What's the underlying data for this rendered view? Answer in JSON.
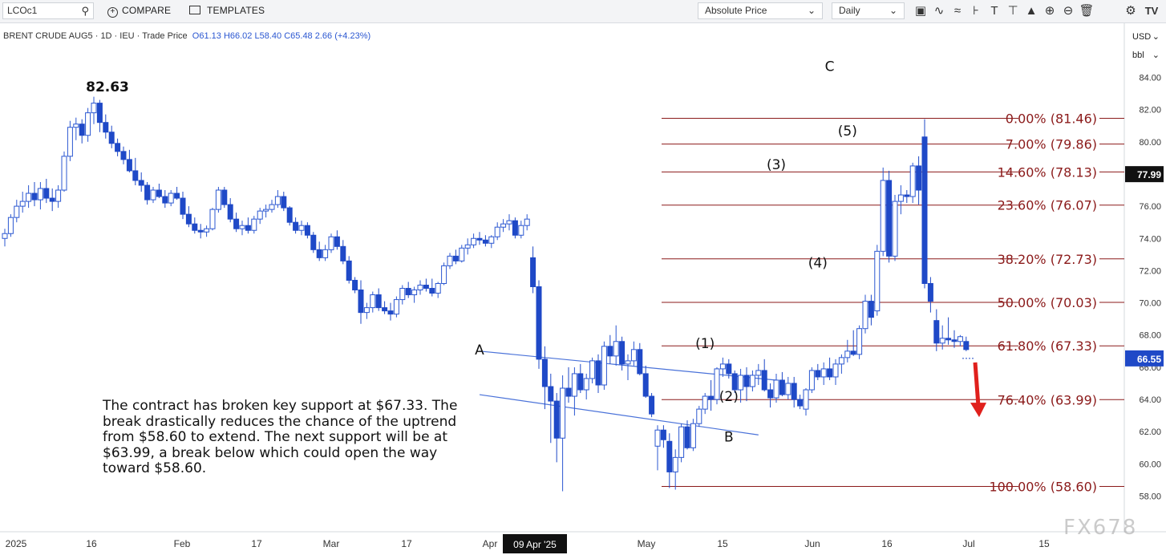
{
  "toolbar": {
    "symbol": "LCOc1",
    "compare_label": "COMPARE",
    "templates_label": "TEMPLATES",
    "price_mode": "Absolute Price",
    "interval": "Daily",
    "icons": [
      "bar-style-icon",
      "indicators-icon",
      "drawing-icon",
      "crosshair-icon",
      "text-icon",
      "annotate-icon",
      "shapes-icon",
      "zoom-in-icon",
      "zoom-out-icon",
      "delete-icon",
      "settings-icon",
      "logo-icon"
    ]
  },
  "legend": {
    "instrument": "BRENT CRUDE AUG5",
    "interval": "1D",
    "exchange": "IEU",
    "price_type": "Trade Price",
    "open": "O61.13",
    "high": "H66.02",
    "low": "L58.40",
    "close": "C65.48",
    "change": "2.66 (+4.23%)"
  },
  "axis_units": {
    "currency": "USD",
    "unit": "bbl"
  },
  "annotation_text": "The contract has broken key support at $67.33. The break drastically reduces the chance of the uptrend from $58.60 to extend. The next support will be at $63.99, a break below which could open the way toward $58.60.",
  "watermark": "FX678",
  "colors": {
    "up_outline": "#2b57d1",
    "down_fill": "#1f49c7",
    "fib": "#8b1a1a",
    "arrow": "#e0201c"
  },
  "chart_data": {
    "type": "candlestick",
    "ylim": [
      57,
      86.5
    ],
    "y_ticks": [
      "84.00",
      "82.00",
      "80.00",
      "78.00",
      "76.00",
      "74.00",
      "72.00",
      "70.00",
      "68.00",
      "66.00",
      "64.00",
      "62.00",
      "60.00",
      "58.00"
    ],
    "x_ticks": [
      "2025",
      "16",
      "Feb",
      "17",
      "Mar",
      "17",
      "Apr",
      "May",
      "15",
      "Jun",
      "16",
      "Jul",
      "15"
    ],
    "crosshair_label": "09 Apr '25",
    "price_tags": [
      {
        "value": 77.99,
        "label": "77.99",
        "color": "#111111"
      },
      {
        "value": 66.55,
        "label": "66.55",
        "color": "#1f49c7"
      }
    ],
    "peak_label": "82.63",
    "fibonacci": [
      {
        "level": "0.00%",
        "price": 81.46,
        "label": "0.00% (81.46)"
      },
      {
        "level": "7.00%",
        "price": 79.86,
        "label": "7.00% (79.86)"
      },
      {
        "level": "14.60%",
        "price": 78.13,
        "label": "14.60% (78.13)"
      },
      {
        "level": "23.60%",
        "price": 76.07,
        "label": "23.60% (76.07)"
      },
      {
        "level": "38.20%",
        "price": 72.73,
        "label": "38.20% (72.73)"
      },
      {
        "level": "50.00%",
        "price": 70.03,
        "label": "50.00% (70.03)"
      },
      {
        "level": "61.80%",
        "price": 67.33,
        "label": "61.80% (67.33)"
      },
      {
        "level": "76.40%",
        "price": 63.99,
        "label": "76.40% (63.99)"
      },
      {
        "level": "100.00%",
        "price": 58.6,
        "label": "100.00% (58.60)"
      }
    ],
    "wave_labels": [
      {
        "text": "A",
        "x": 80,
        "y": 66.8
      },
      {
        "text": "B",
        "x": 122,
        "y": 61.4
      },
      {
        "text": "(1)",
        "x": 118,
        "y": 67.2
      },
      {
        "text": "(2)",
        "x": 122,
        "y": 63.9
      },
      {
        "text": "(3)",
        "x": 130,
        "y": 78.3
      },
      {
        "text": "(4)",
        "x": 137,
        "y": 72.2
      },
      {
        "text": "(5)",
        "x": 142,
        "y": 80.4
      },
      {
        "text": "C",
        "x": 139,
        "y": 84.4
      }
    ],
    "channel_lines": [
      {
        "x1": 80,
        "y1": 67.0,
        "x2": 130,
        "y2": 65.2
      },
      {
        "x1": 80,
        "y1": 64.3,
        "x2": 127,
        "y2": 61.8
      }
    ],
    "candles": [
      [
        74.0,
        74.6,
        73.5,
        74.3
      ],
      [
        74.3,
        75.5,
        74.1,
        75.3
      ],
      [
        75.3,
        76.4,
        75.0,
        76.0
      ],
      [
        76.0,
        76.9,
        75.6,
        76.3
      ],
      [
        76.3,
        77.3,
        75.9,
        76.8
      ],
      [
        76.8,
        77.5,
        76.0,
        76.4
      ],
      [
        76.4,
        77.5,
        75.8,
        77.1
      ],
      [
        77.1,
        77.7,
        76.2,
        76.5
      ],
      [
        76.5,
        77.1,
        75.7,
        76.3
      ],
      [
        76.3,
        77.3,
        75.9,
        77.0
      ],
      [
        77.0,
        79.4,
        76.9,
        79.1
      ],
      [
        79.1,
        81.3,
        78.8,
        80.9
      ],
      [
        80.9,
        81.5,
        80.1,
        81.1
      ],
      [
        81.1,
        81.4,
        79.9,
        80.4
      ],
      [
        80.4,
        82.1,
        80.0,
        81.8
      ],
      [
        81.8,
        82.8,
        81.1,
        82.4
      ],
      [
        82.4,
        82.6,
        80.6,
        81.2
      ],
      [
        81.2,
        81.7,
        80.2,
        80.6
      ],
      [
        80.6,
        81.0,
        79.6,
        79.9
      ],
      [
        79.9,
        80.2,
        79.1,
        79.4
      ],
      [
        79.4,
        79.7,
        78.6,
        78.9
      ],
      [
        78.9,
        79.5,
        78.1,
        78.2
      ],
      [
        78.2,
        79.0,
        77.3,
        77.6
      ],
      [
        77.6,
        78.1,
        76.9,
        77.3
      ],
      [
        77.3,
        77.5,
        76.1,
        76.4
      ],
      [
        76.4,
        77.2,
        76.2,
        77.0
      ],
      [
        77.0,
        77.4,
        76.5,
        76.6
      ],
      [
        76.6,
        77.0,
        75.9,
        76.2
      ],
      [
        76.2,
        77.0,
        76.0,
        76.8
      ],
      [
        76.8,
        77.2,
        76.4,
        76.5
      ],
      [
        76.5,
        76.9,
        75.2,
        75.5
      ],
      [
        75.5,
        76.0,
        74.7,
        74.9
      ],
      [
        74.9,
        75.3,
        74.3,
        74.5
      ],
      [
        74.5,
        74.9,
        74.0,
        74.4
      ],
      [
        74.4,
        74.8,
        74.1,
        74.6
      ],
      [
        74.6,
        75.9,
        74.5,
        75.8
      ],
      [
        75.8,
        77.2,
        75.6,
        77.0
      ],
      [
        77.0,
        77.2,
        75.9,
        76.1
      ],
      [
        76.1,
        76.5,
        75.0,
        75.2
      ],
      [
        75.2,
        75.6,
        74.4,
        74.6
      ],
      [
        74.6,
        75.1,
        74.2,
        74.8
      ],
      [
        74.8,
        75.3,
        74.3,
        74.5
      ],
      [
        74.5,
        75.4,
        74.3,
        75.2
      ],
      [
        75.2,
        75.9,
        74.9,
        75.7
      ],
      [
        75.7,
        76.1,
        75.3,
        75.8
      ],
      [
        75.8,
        76.4,
        75.6,
        76.1
      ],
      [
        76.1,
        77.0,
        75.9,
        76.6
      ],
      [
        76.6,
        76.9,
        75.7,
        75.9
      ],
      [
        75.9,
        76.0,
        74.8,
        75.0
      ],
      [
        75.0,
        75.3,
        74.3,
        74.5
      ],
      [
        74.5,
        75.1,
        74.2,
        74.8
      ],
      [
        74.8,
        75.0,
        74.0,
        74.2
      ],
      [
        74.2,
        74.4,
        73.1,
        73.3
      ],
      [
        73.3,
        73.8,
        72.6,
        72.8
      ],
      [
        72.8,
        73.6,
        72.6,
        73.3
      ],
      [
        73.3,
        74.3,
        73.1,
        74.1
      ],
      [
        74.1,
        74.5,
        73.3,
        73.5
      ],
      [
        73.5,
        73.9,
        72.4,
        72.6
      ],
      [
        72.6,
        72.9,
        71.2,
        71.4
      ],
      [
        71.4,
        71.6,
        70.6,
        70.8
      ],
      [
        70.8,
        71.4,
        68.7,
        69.4
      ],
      [
        69.4,
        70.0,
        69.0,
        69.7
      ],
      [
        69.7,
        70.7,
        69.4,
        70.5
      ],
      [
        70.5,
        70.9,
        69.5,
        69.7
      ],
      [
        69.7,
        70.1,
        69.3,
        69.5
      ],
      [
        69.5,
        70.0,
        68.9,
        69.3
      ],
      [
        69.3,
        70.4,
        69.1,
        70.2
      ],
      [
        70.2,
        71.1,
        69.9,
        70.9
      ],
      [
        70.9,
        71.3,
        70.3,
        70.5
      ],
      [
        70.5,
        71.0,
        70.0,
        70.8
      ],
      [
        70.8,
        71.4,
        70.5,
        71.1
      ],
      [
        71.1,
        71.5,
        70.7,
        70.9
      ],
      [
        70.9,
        71.5,
        70.4,
        70.6
      ],
      [
        70.6,
        71.3,
        70.3,
        71.2
      ],
      [
        71.2,
        72.5,
        71.1,
        72.3
      ],
      [
        72.3,
        73.1,
        72.1,
        72.9
      ],
      [
        72.9,
        73.3,
        72.4,
        72.6
      ],
      [
        72.6,
        73.6,
        72.5,
        73.4
      ],
      [
        73.4,
        74.0,
        73.0,
        73.6
      ],
      [
        73.6,
        74.3,
        73.4,
        74.0
      ],
      [
        74.0,
        74.4,
        73.6,
        73.9
      ],
      [
        73.9,
        74.2,
        73.5,
        73.7
      ],
      [
        73.7,
        74.2,
        73.4,
        74.1
      ],
      [
        74.1,
        75.0,
        73.9,
        74.7
      ],
      [
        74.7,
        75.2,
        74.4,
        74.9
      ],
      [
        74.9,
        75.5,
        74.5,
        75.1
      ],
      [
        75.1,
        75.3,
        74.0,
        74.2
      ],
      [
        74.2,
        75.1,
        74.0,
        74.8
      ],
      [
        74.8,
        75.5,
        74.5,
        75.2
      ],
      [
        72.8,
        73.5,
        70.6,
        71.0
      ],
      [
        71.0,
        71.4,
        65.9,
        66.5
      ],
      [
        66.5,
        67.3,
        63.4,
        64.8
      ],
      [
        64.8,
        65.6,
        61.3,
        63.9
      ],
      [
        63.9,
        64.4,
        60.1,
        61.6
      ],
      [
        61.6,
        65.5,
        58.3,
        64.7
      ],
      [
        64.7,
        66.0,
        63.8,
        64.2
      ],
      [
        64.2,
        66.0,
        63.0,
        65.6
      ],
      [
        65.6,
        66.2,
        64.4,
        64.6
      ],
      [
        64.6,
        65.6,
        64.0,
        65.3
      ],
      [
        65.3,
        66.6,
        65.0,
        66.4
      ],
      [
        66.4,
        66.8,
        64.4,
        64.9
      ],
      [
        64.9,
        67.6,
        64.6,
        67.3
      ],
      [
        67.3,
        68.0,
        66.2,
        66.7
      ],
      [
        66.7,
        68.6,
        66.1,
        67.6
      ],
      [
        67.6,
        67.9,
        65.8,
        66.2
      ],
      [
        66.2,
        66.8,
        65.2,
        66.4
      ],
      [
        66.4,
        67.6,
        66.1,
        67.1
      ],
      [
        67.1,
        67.5,
        65.5,
        65.6
      ],
      [
        65.6,
        66.1,
        64.1,
        64.2
      ],
      [
        64.2,
        64.4,
        62.9,
        63.1
      ],
      [
        61.1,
        62.4,
        59.6,
        62.1
      ],
      [
        62.1,
        62.4,
        61.0,
        61.5
      ],
      [
        61.4,
        61.9,
        58.5,
        59.5
      ],
      [
        59.5,
        60.9,
        58.4,
        60.4
      ],
      [
        60.4,
        62.5,
        60.1,
        62.3
      ],
      [
        62.3,
        62.7,
        60.9,
        61.0
      ],
      [
        61.0,
        62.8,
        60.8,
        62.5
      ],
      [
        62.5,
        63.6,
        62.3,
        63.4
      ],
      [
        63.4,
        64.4,
        63.1,
        64.2
      ],
      [
        64.2,
        65.2,
        63.3,
        64.0
      ],
      [
        64.0,
        66.0,
        63.7,
        65.9
      ],
      [
        65.9,
        66.6,
        65.4,
        66.2
      ],
      [
        66.2,
        66.5,
        65.3,
        65.6
      ],
      [
        65.6,
        65.8,
        64.4,
        64.6
      ],
      [
        64.6,
        65.9,
        63.8,
        65.5
      ],
      [
        65.5,
        66.0,
        63.9,
        64.8
      ],
      [
        64.8,
        65.8,
        64.5,
        65.5
      ],
      [
        65.5,
        66.2,
        64.9,
        65.8
      ],
      [
        65.8,
        66.5,
        64.5,
        64.6
      ],
      [
        64.6,
        65.0,
        63.5,
        64.1
      ],
      [
        64.1,
        65.6,
        63.8,
        65.2
      ],
      [
        65.2,
        65.7,
        64.2,
        64.3
      ],
      [
        64.3,
        65.4,
        64.0,
        65.0
      ],
      [
        65.0,
        65.4,
        63.5,
        64.0
      ],
      [
        64.0,
        64.3,
        63.4,
        63.6
      ],
      [
        63.4,
        64.7,
        63.0,
        64.6
      ],
      [
        64.6,
        66.0,
        64.4,
        65.8
      ],
      [
        65.8,
        66.2,
        65.2,
        65.4
      ],
      [
        65.4,
        66.3,
        64.9,
        65.9
      ],
      [
        65.9,
        66.6,
        65.2,
        65.4
      ],
      [
        65.4,
        66.5,
        64.9,
        66.2
      ],
      [
        66.2,
        66.8,
        65.6,
        66.6
      ],
      [
        66.6,
        67.7,
        66.3,
        67.0
      ],
      [
        67.0,
        68.3,
        66.7,
        66.8
      ],
      [
        66.8,
        68.6,
        66.5,
        68.4
      ],
      [
        68.4,
        70.5,
        68.1,
        70.1
      ],
      [
        70.1,
        70.5,
        68.6,
        69.1
      ],
      [
        69.5,
        73.6,
        69.2,
        73.2
      ],
      [
        73.2,
        78.4,
        72.9,
        77.6
      ],
      [
        77.6,
        78.2,
        72.5,
        72.9
      ],
      [
        72.9,
        76.7,
        72.6,
        76.3
      ],
      [
        76.3,
        77.3,
        75.5,
        76.7
      ],
      [
        76.7,
        77.0,
        76.2,
        76.6
      ],
      [
        76.6,
        78.7,
        76.2,
        78.5
      ],
      [
        78.5,
        79.1,
        76.1,
        77.0
      ],
      [
        80.3,
        81.4,
        70.9,
        71.2
      ],
      [
        71.2,
        71.6,
        69.4,
        70.1
      ],
      [
        68.9,
        69.6,
        67.0,
        67.5
      ],
      [
        67.5,
        68.6,
        67.1,
        67.8
      ],
      [
        67.8,
        69.1,
        67.4,
        67.7
      ],
      [
        67.7,
        68.3,
        67.2,
        67.6
      ],
      [
        67.6,
        68.0,
        67.3,
        67.9
      ],
      [
        67.6,
        67.9,
        67.0,
        67.1
      ]
    ],
    "candle_x": [
      0,
      1,
      2,
      3,
      4,
      5,
      6,
      7,
      8,
      9,
      10,
      11,
      12,
      13,
      14,
      15,
      16,
      17,
      18,
      19,
      20,
      21,
      22,
      23,
      24,
      25,
      26,
      27,
      28,
      29,
      30,
      31,
      32,
      33,
      34,
      35,
      36,
      37,
      38,
      39,
      40,
      41,
      42,
      43,
      44,
      45,
      46,
      47,
      48,
      49,
      50,
      51,
      52,
      53,
      54,
      55,
      56,
      57,
      58,
      59,
      60,
      61,
      62,
      63,
      64,
      65,
      66,
      67,
      68,
      69,
      70,
      71,
      72,
      73,
      74,
      75,
      76,
      77,
      78,
      79,
      80,
      81,
      82,
      83,
      84,
      85,
      86,
      87,
      88,
      89,
      90,
      91,
      92,
      93,
      94,
      95,
      96,
      97,
      98,
      99,
      100,
      101,
      102,
      103,
      104,
      105,
      106,
      107,
      108,
      109,
      110,
      111,
      112,
      113,
      114,
      115,
      116,
      117,
      118,
      119,
      120,
      121,
      122,
      123,
      124,
      125,
      126,
      127,
      128,
      129,
      130,
      131,
      132,
      133,
      134,
      135,
      136,
      137,
      138,
      139,
      140,
      141,
      142,
      143,
      144,
      145,
      146,
      147,
      148,
      149,
      150,
      151,
      152,
      153,
      154,
      155,
      156,
      157,
      158,
      159,
      160,
      161,
      162,
      163,
      164
    ]
  }
}
